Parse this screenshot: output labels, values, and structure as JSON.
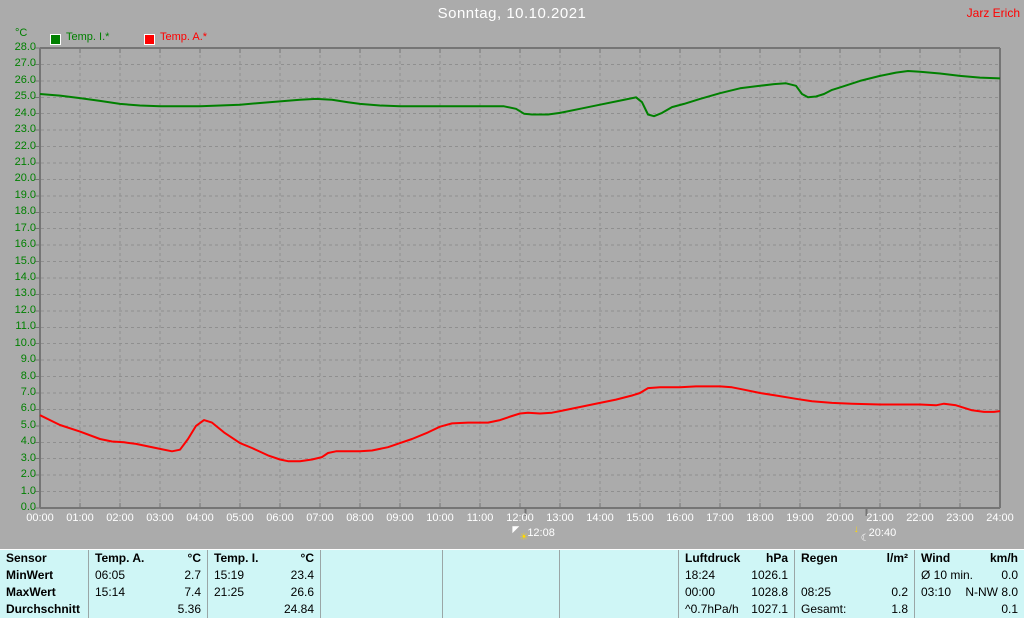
{
  "header": {
    "title": "Sonntag, 10.10.2021",
    "user": "Jarz Erich"
  },
  "colors": {
    "background": "#ababab",
    "grid": "#8f8f8f",
    "axis": "#757575",
    "title_text": "#ffffff",
    "tick_text": "#ffffff",
    "user_text": "#ff0000",
    "temp_i_green": "#008000",
    "temp_a_red": "#ff0000",
    "table_bg": "#cff6f6"
  },
  "chart_data": {
    "type": "line",
    "title": "Sonntag, 10.10.2021",
    "ylabel": "°C",
    "ylim": [
      0,
      28
    ],
    "y_tick_step": 1.0,
    "xlim_hours": [
      0,
      24
    ],
    "x_tick_labels": [
      "00:00",
      "01:00",
      "02:00",
      "03:00",
      "04:00",
      "05:00",
      "06:00",
      "07:00",
      "08:00",
      "09:00",
      "10:00",
      "11:00",
      "12:00",
      "13:00",
      "14:00",
      "15:00",
      "16:00",
      "17:00",
      "18:00",
      "19:00",
      "20:00",
      "21:00",
      "22:00",
      "23:00",
      "24:00"
    ],
    "grid": true,
    "legend_position": "top-left",
    "legend": [
      {
        "label": "Temp. I.*",
        "color": "#008000"
      },
      {
        "label": "Temp. A.*",
        "color": "#ff0000"
      }
    ],
    "series": [
      {
        "name": "Temp. I.*",
        "color": "#008000",
        "points": [
          [
            0,
            25.2
          ],
          [
            0.5,
            25.1
          ],
          [
            1,
            24.95
          ],
          [
            1.5,
            24.78
          ],
          [
            2,
            24.6
          ],
          [
            2.5,
            24.5
          ],
          [
            3,
            24.45
          ],
          [
            4,
            24.45
          ],
          [
            4.5,
            24.5
          ],
          [
            5,
            24.55
          ],
          [
            5.5,
            24.65
          ],
          [
            6,
            24.75
          ],
          [
            6.5,
            24.85
          ],
          [
            6.9,
            24.9
          ],
          [
            7.3,
            24.85
          ],
          [
            7.7,
            24.7
          ],
          [
            8,
            24.6
          ],
          [
            8.5,
            24.5
          ],
          [
            9,
            24.45
          ],
          [
            10,
            24.45
          ],
          [
            11,
            24.45
          ],
          [
            11.6,
            24.45
          ],
          [
            11.9,
            24.3
          ],
          [
            12.1,
            24.0
          ],
          [
            12.3,
            23.95
          ],
          [
            12.7,
            23.95
          ],
          [
            13,
            24.05
          ],
          [
            13.5,
            24.3
          ],
          [
            14,
            24.55
          ],
          [
            14.5,
            24.8
          ],
          [
            14.9,
            25.0
          ],
          [
            15.05,
            24.7
          ],
          [
            15.2,
            23.95
          ],
          [
            15.35,
            23.85
          ],
          [
            15.55,
            24.05
          ],
          [
            15.8,
            24.4
          ],
          [
            16.1,
            24.6
          ],
          [
            16.5,
            24.9
          ],
          [
            17,
            25.25
          ],
          [
            17.5,
            25.55
          ],
          [
            18,
            25.7
          ],
          [
            18.35,
            25.8
          ],
          [
            18.65,
            25.85
          ],
          [
            18.9,
            25.7
          ],
          [
            19.05,
            25.2
          ],
          [
            19.2,
            25.0
          ],
          [
            19.4,
            25.05
          ],
          [
            19.6,
            25.2
          ],
          [
            19.8,
            25.45
          ],
          [
            20,
            25.6
          ],
          [
            20.5,
            26.0
          ],
          [
            21,
            26.3
          ],
          [
            21.4,
            26.5
          ],
          [
            21.7,
            26.6
          ],
          [
            22,
            26.55
          ],
          [
            22.5,
            26.45
          ],
          [
            23,
            26.3
          ],
          [
            23.5,
            26.2
          ],
          [
            24,
            26.15
          ]
        ]
      },
      {
        "name": "Temp. A.*",
        "color": "#ff0000",
        "points": [
          [
            0,
            5.65
          ],
          [
            0.25,
            5.35
          ],
          [
            0.5,
            5.05
          ],
          [
            1,
            4.65
          ],
          [
            1.5,
            4.2
          ],
          [
            1.8,
            4.05
          ],
          [
            2.1,
            4.0
          ],
          [
            2.4,
            3.9
          ],
          [
            2.7,
            3.75
          ],
          [
            3,
            3.6
          ],
          [
            3.3,
            3.45
          ],
          [
            3.5,
            3.55
          ],
          [
            3.7,
            4.2
          ],
          [
            3.9,
            5.0
          ],
          [
            4.1,
            5.35
          ],
          [
            4.3,
            5.2
          ],
          [
            4.6,
            4.6
          ],
          [
            5,
            3.95
          ],
          [
            5.3,
            3.65
          ],
          [
            5.7,
            3.2
          ],
          [
            6,
            2.95
          ],
          [
            6.2,
            2.85
          ],
          [
            6.5,
            2.85
          ],
          [
            6.8,
            2.95
          ],
          [
            7.05,
            3.1
          ],
          [
            7.2,
            3.35
          ],
          [
            7.4,
            3.45
          ],
          [
            8,
            3.45
          ],
          [
            8.3,
            3.5
          ],
          [
            8.7,
            3.7
          ],
          [
            9,
            3.95
          ],
          [
            9.3,
            4.2
          ],
          [
            9.7,
            4.6
          ],
          [
            10,
            4.95
          ],
          [
            10.3,
            5.15
          ],
          [
            10.7,
            5.2
          ],
          [
            11.2,
            5.2
          ],
          [
            11.5,
            5.35
          ],
          [
            11.8,
            5.6
          ],
          [
            12,
            5.75
          ],
          [
            12.2,
            5.8
          ],
          [
            12.5,
            5.75
          ],
          [
            12.8,
            5.8
          ],
          [
            13,
            5.9
          ],
          [
            13.5,
            6.15
          ],
          [
            14,
            6.4
          ],
          [
            14.4,
            6.6
          ],
          [
            14.8,
            6.85
          ],
          [
            15,
            7.0
          ],
          [
            15.2,
            7.3
          ],
          [
            15.5,
            7.35
          ],
          [
            16,
            7.35
          ],
          [
            16.4,
            7.4
          ],
          [
            17,
            7.4
          ],
          [
            17.3,
            7.35
          ],
          [
            17.6,
            7.2
          ],
          [
            18,
            7.0
          ],
          [
            18.4,
            6.85
          ],
          [
            18.9,
            6.65
          ],
          [
            19.3,
            6.5
          ],
          [
            19.8,
            6.4
          ],
          [
            20.3,
            6.35
          ],
          [
            21,
            6.3
          ],
          [
            22,
            6.3
          ],
          [
            22.4,
            6.25
          ],
          [
            22.6,
            6.35
          ],
          [
            22.9,
            6.25
          ],
          [
            23.1,
            6.1
          ],
          [
            23.3,
            5.95
          ],
          [
            23.6,
            5.85
          ],
          [
            23.85,
            5.85
          ],
          [
            24,
            5.9
          ]
        ]
      }
    ],
    "event_markers": [
      {
        "label": "12:08",
        "hour": 12.133,
        "icon": "sun-icon"
      },
      {
        "label": "20:40",
        "hour": 20.667,
        "icon": "moon-icon"
      }
    ]
  },
  "table": {
    "row_labels": [
      "Sensor",
      "MinWert",
      "MaxWert",
      "Durchschnitt"
    ],
    "columns": [
      {
        "header": "Temp. A.",
        "unit": "°C",
        "cells": [
          [
            "06:05",
            "2.7"
          ],
          [
            "15:14",
            "7.4"
          ],
          [
            "",
            "5.36"
          ]
        ]
      },
      {
        "header": "Temp. I.",
        "unit": "°C",
        "cells": [
          [
            "15:19",
            "23.4"
          ],
          [
            "21:25",
            "26.6"
          ],
          [
            "",
            "24.84"
          ]
        ]
      },
      {
        "header": "",
        "unit": "",
        "cells": [
          [
            "",
            ""
          ],
          [
            "",
            ""
          ],
          [
            "",
            ""
          ]
        ]
      },
      {
        "header": "",
        "unit": "",
        "cells": [
          [
            "",
            ""
          ],
          [
            "",
            ""
          ],
          [
            "",
            ""
          ]
        ]
      },
      {
        "header": "",
        "unit": "",
        "cells": [
          [
            "",
            ""
          ],
          [
            "",
            ""
          ],
          [
            "",
            ""
          ]
        ]
      },
      {
        "header": "Luftdruck",
        "unit": "hPa",
        "cells": [
          [
            "18:24",
            "1026.1"
          ],
          [
            "00:00",
            "1028.8"
          ],
          [
            "^0.7hPa/h",
            "1027.1"
          ]
        ]
      },
      {
        "header": "Regen",
        "unit": "l/m²",
        "cells": [
          [
            "",
            ""
          ],
          [
            "08:25",
            "0.2"
          ],
          [
            "Gesamt:",
            "1.8"
          ]
        ]
      },
      {
        "header": "Wind",
        "unit": "km/h",
        "cells": [
          [
            "Ø 10 min.",
            "0.0"
          ],
          [
            "03:10",
            "N-NW 8.0"
          ],
          [
            "",
            "0.1"
          ]
        ]
      }
    ]
  }
}
